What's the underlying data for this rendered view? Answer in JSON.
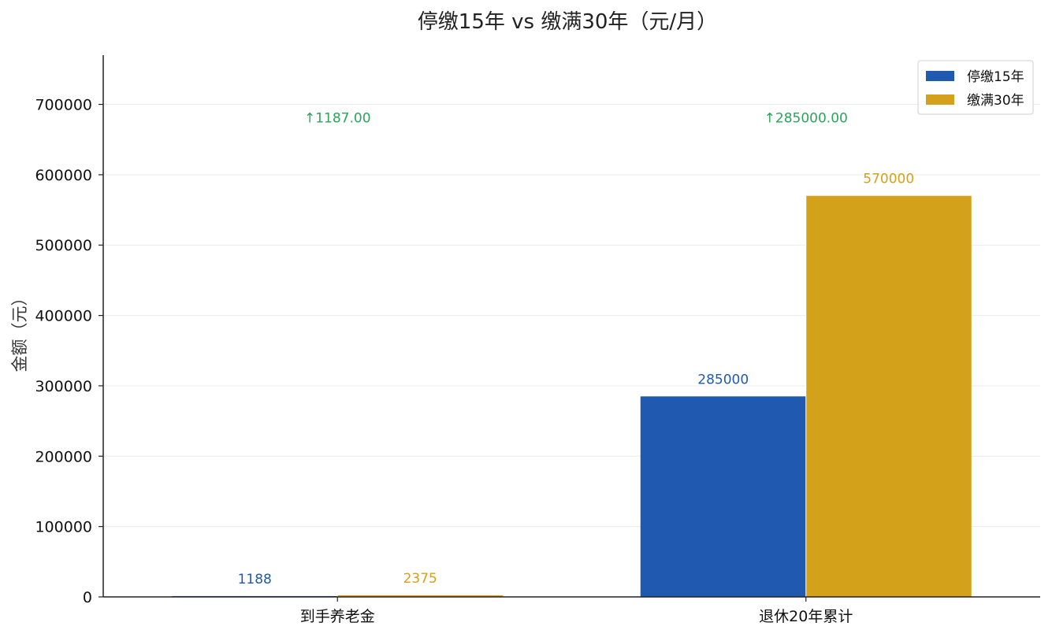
{
  "chart_data": {
    "type": "bar",
    "title": "停缴15年 vs 缴满30年（元/月）",
    "ylabel": "金额（元）",
    "xlabel": "",
    "categories": [
      "到手养老金",
      "退休20年累计"
    ],
    "series": [
      {
        "name": "停缴15年",
        "color": "#1f5ab0",
        "values": [
          1188,
          285000
        ],
        "labels": [
          "1188",
          "285000"
        ]
      },
      {
        "name": "缴满30年",
        "color": "#d4a11a",
        "values": [
          2375,
          570000
        ],
        "labels": [
          "2375",
          "570000"
        ]
      }
    ],
    "differences": [
      {
        "category": "到手养老金",
        "label": "↑1187.00",
        "y": 670000
      },
      {
        "category": "退休20年累计",
        "label": "↑285000.00",
        "y": 670000
      }
    ],
    "difference_color": "#2aa55a",
    "ylim": [
      0,
      770000
    ],
    "yticks": [
      0,
      100000,
      200000,
      300000,
      400000,
      500000,
      600000,
      700000
    ],
    "ytick_labels": [
      "0",
      "100000",
      "200000",
      "300000",
      "400000",
      "500000",
      "600000",
      "700000"
    ],
    "grid": true,
    "legend": "top-right"
  }
}
